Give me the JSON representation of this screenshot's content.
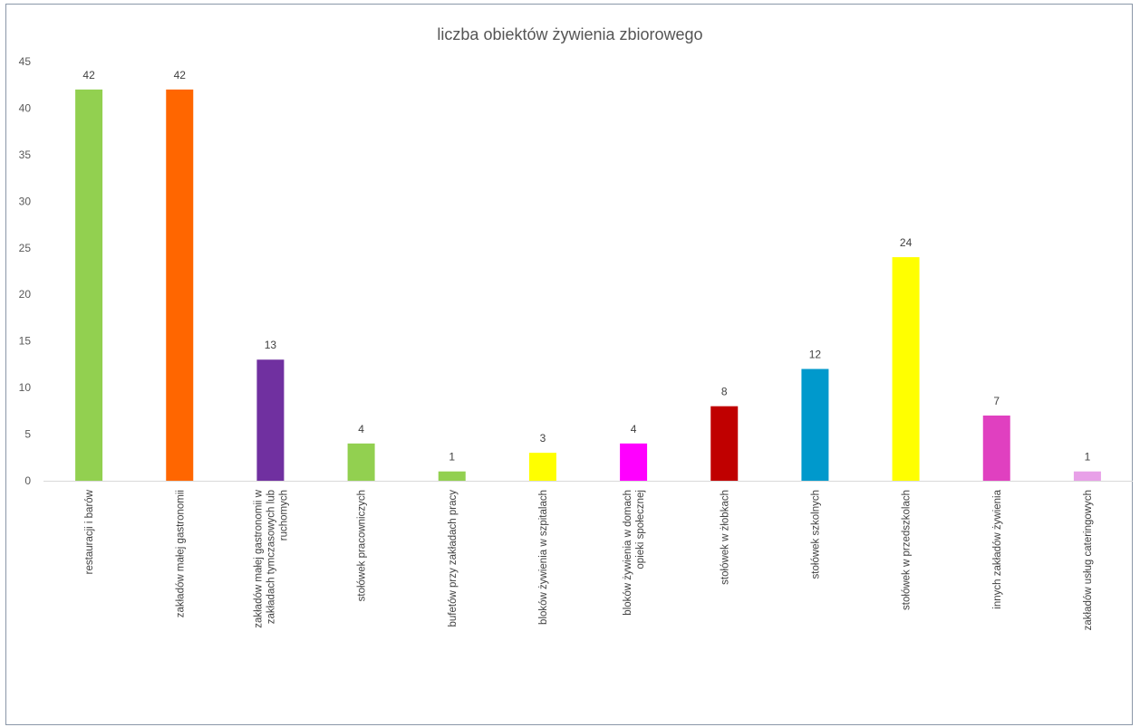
{
  "chart_data": {
    "type": "bar",
    "title": "liczba obiektów żywienia zbiorowego",
    "xlabel": "",
    "ylabel": "",
    "ylim": [
      0,
      45
    ],
    "yticks": [
      0,
      5,
      10,
      15,
      20,
      25,
      30,
      35,
      40,
      45
    ],
    "grid": false,
    "legend": "none",
    "categories": [
      "restauracji i barów",
      "zakładów małej gastronomii",
      "zakładów małej gastronomii w zakładach tymczasowych lub ruchomych",
      "stołówek pracowniczych",
      "bufetów przy zakładach pracy",
      "bloków żywienia w szpitalach",
      "bloków żywienia w domach opieki społecznej",
      "stołówek w żłobkach",
      "stołówek szkolnych",
      "stołówek w przedszkolach",
      "innych zakładów żywienia",
      "zakładów usług cateringowych"
    ],
    "values": [
      42,
      42,
      13,
      4,
      1,
      3,
      4,
      8,
      12,
      24,
      7,
      1
    ],
    "colors": [
      "#92d050",
      "#ff6600",
      "#7030a0",
      "#92d050",
      "#92d050",
      "#ffff00",
      "#ff00ff",
      "#c00000",
      "#0099cc",
      "#ffff00",
      "#e040c0",
      "#e8a0e8"
    ]
  }
}
